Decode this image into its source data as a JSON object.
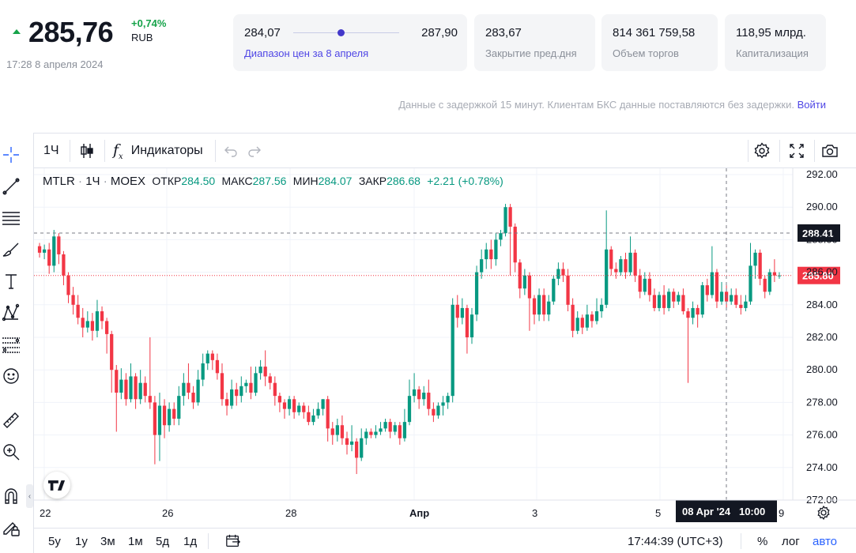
{
  "quote": {
    "price": "285,76",
    "change_pct": "+0,74%",
    "currency": "RUB",
    "timestamp": "17:28 8 апреля 2024",
    "up_color": "#16a34a"
  },
  "cards": {
    "range": {
      "low": "284,07",
      "high": "287,90",
      "label": "Диапазон цен за 8 апреля",
      "position": 0.45
    },
    "prev_close": {
      "value": "283,67",
      "label": "Закрытие пред.дня"
    },
    "volume": {
      "value": "814 361 759,58",
      "label": "Объем торгов"
    },
    "cap": {
      "value": "118,95 млрд.",
      "label": "Капитализация"
    }
  },
  "notice": {
    "text": "Данные с задержкой 15 минут. Клиентам БКС данные поставляются без задержки.",
    "login": "Войти"
  },
  "toolbar": {
    "interval": "1Ч",
    "indicators": "Индикаторы",
    "icons": [
      "candles-icon",
      "fx-icon",
      "undo-icon",
      "redo-icon",
      "settings-icon",
      "fullscreen-icon",
      "camera-icon"
    ]
  },
  "left_tools": [
    "crosshair-icon",
    "trendline-icon",
    "horizontal-lines-icon",
    "brush-icon",
    "text-icon",
    "pattern-icon",
    "fib-icon",
    "emoji-icon",
    "ruler-icon",
    "zoom-in-icon",
    "magnet-icon",
    "lock-pencil-icon"
  ],
  "legend": {
    "symbol": "MTLR",
    "interval": "1Ч",
    "exchange": "MOEX",
    "open_label": "ОТКР",
    "open": "284.50",
    "high_label": "МАКС",
    "high": "287.56",
    "low_label": "МИН",
    "low": "284.07",
    "close_label": "ЗАКР",
    "close": "286.68",
    "change": "+2.21 (+0.78%)"
  },
  "bottom_bar": {
    "ranges": [
      "5у",
      "1у",
      "3м",
      "1м",
      "5д",
      "1д"
    ],
    "clock": "17:44:39 (UTC+3)",
    "pct": "%",
    "log": "лог",
    "auto": "авто"
  },
  "chart_data": {
    "type": "candlestick",
    "symbol": "MTLR",
    "ylim": [
      272,
      292
    ],
    "y_ticks": [
      "292.00",
      "290.00",
      "288.00",
      "286.00",
      "284.00",
      "282.00",
      "280.00",
      "278.00",
      "276.00",
      "274.00",
      "272.00"
    ],
    "x_ticks": [
      "22",
      "26",
      "28",
      "Апр",
      "3",
      "5",
      "9"
    ],
    "crosshair_price": "288.41",
    "last_price": "285.80",
    "crosshair_time": "08 Apr '24   10:00",
    "colors": {
      "up": "#089981",
      "down": "#f23645"
    },
    "candles": [
      [
        287.6,
        287.2,
        287.8,
        286.9
      ],
      [
        287.2,
        287.4,
        287.7,
        286.8
      ],
      [
        287.4,
        286.4,
        287.8,
        285.9
      ],
      [
        286.4,
        288.2,
        288.6,
        286.0
      ],
      [
        288.2,
        287.1,
        288.4,
        286.5
      ],
      [
        287.1,
        285.8,
        287.3,
        285.2
      ],
      [
        285.8,
        284.6,
        286.0,
        284.1
      ],
      [
        284.6,
        284.0,
        285.1,
        283.4
      ],
      [
        284.0,
        283.2,
        284.6,
        282.8
      ],
      [
        283.2,
        282.6,
        283.8,
        282.0
      ],
      [
        282.6,
        283.0,
        283.6,
        282.3
      ],
      [
        283.0,
        282.4,
        283.5,
        281.8
      ],
      [
        282.4,
        283.6,
        284.3,
        282.0
      ],
      [
        283.6,
        283.0,
        283.9,
        282.5
      ],
      [
        283.0,
        282.2,
        283.2,
        281.0
      ],
      [
        282.2,
        280.0,
        282.4,
        278.6
      ],
      [
        280.0,
        278.6,
        280.3,
        276.2
      ],
      [
        278.6,
        279.4,
        280.1,
        278.2
      ],
      [
        279.4,
        278.2,
        279.8,
        277.8
      ],
      [
        278.2,
        279.6,
        280.4,
        278.0
      ],
      [
        279.6,
        278.2,
        279.8,
        277.6
      ],
      [
        278.2,
        279.2,
        280.0,
        277.9
      ],
      [
        279.2,
        278.4,
        279.6,
        278.0
      ],
      [
        278.4,
        278.0,
        282.0,
        277.6
      ],
      [
        278.0,
        276.0,
        278.4,
        274.2
      ],
      [
        276.0,
        277.8,
        278.6,
        274.4
      ],
      [
        277.8,
        276.6,
        278.2,
        275.8
      ],
      [
        276.6,
        277.6,
        278.0,
        276.2
      ],
      [
        277.6,
        277.0,
        278.0,
        276.6
      ],
      [
        277.0,
        278.4,
        279.0,
        276.6
      ],
      [
        278.4,
        279.2,
        279.8,
        277.8
      ],
      [
        279.2,
        278.6,
        280.4,
        278.2
      ],
      [
        278.6,
        278.0,
        279.0,
        277.6
      ],
      [
        278.0,
        279.4,
        280.0,
        277.8
      ],
      [
        279.4,
        280.4,
        281.0,
        279.0
      ],
      [
        280.4,
        281.0,
        281.2,
        280.0
      ],
      [
        281.0,
        280.6,
        281.2,
        280.0
      ],
      [
        280.6,
        279.8,
        281.0,
        279.4
      ],
      [
        279.8,
        278.2,
        280.4,
        277.8
      ],
      [
        278.2,
        277.8,
        278.6,
        277.2
      ],
      [
        277.8,
        278.8,
        279.4,
        277.6
      ],
      [
        278.8,
        278.4,
        279.2,
        277.8
      ],
      [
        278.4,
        279.0,
        279.6,
        278.0
      ],
      [
        279.0,
        279.2,
        279.4,
        278.6
      ],
      [
        279.2,
        278.6,
        280.2,
        278.2
      ],
      [
        278.6,
        279.8,
        280.2,
        278.4
      ],
      [
        279.8,
        280.2,
        280.6,
        279.4
      ],
      [
        280.2,
        279.6,
        281.2,
        279.0
      ],
      [
        279.6,
        279.2,
        279.8,
        278.8
      ],
      [
        279.2,
        278.4,
        279.6,
        277.8
      ],
      [
        278.4,
        278.0,
        278.6,
        277.4
      ],
      [
        278.0,
        277.6,
        278.2,
        277.0
      ],
      [
        277.6,
        278.2,
        278.4,
        277.2
      ],
      [
        278.2,
        277.4,
        278.4,
        277.0
      ],
      [
        277.4,
        277.8,
        278.0,
        277.2
      ],
      [
        277.8,
        277.4,
        278.0,
        277.0
      ],
      [
        277.4,
        276.8,
        277.8,
        276.6
      ],
      [
        276.8,
        277.2,
        277.6,
        276.6
      ],
      [
        277.2,
        277.6,
        278.0,
        277.0
      ],
      [
        277.6,
        278.2,
        278.2,
        277.2
      ],
      [
        278.2,
        276.4,
        278.4,
        275.6
      ],
      [
        276.4,
        276.0,
        276.8,
        275.4
      ],
      [
        276.0,
        276.6,
        277.0,
        275.6
      ],
      [
        276.6,
        275.8,
        277.2,
        275.4
      ],
      [
        275.8,
        275.4,
        276.2,
        274.8
      ],
      [
        275.4,
        275.6,
        276.6,
        275.0
      ],
      [
        275.6,
        274.6,
        275.8,
        273.6
      ],
      [
        274.6,
        275.8,
        276.4,
        274.4
      ],
      [
        275.8,
        276.2,
        276.4,
        275.4
      ],
      [
        276.2,
        276.0,
        276.4,
        275.8
      ],
      [
        276.0,
        276.2,
        276.6,
        275.8
      ],
      [
        276.2,
        276.4,
        276.8,
        276.0
      ],
      [
        276.4,
        276.8,
        277.0,
        276.2
      ],
      [
        276.8,
        276.2,
        277.0,
        275.8
      ],
      [
        276.2,
        276.6,
        276.8,
        276.0
      ],
      [
        276.6,
        275.8,
        276.8,
        275.4
      ],
      [
        275.8,
        276.8,
        277.6,
        275.6
      ],
      [
        276.8,
        278.4,
        279.4,
        276.6
      ],
      [
        278.4,
        278.8,
        279.8,
        278.0
      ],
      [
        278.8,
        278.2,
        279.0,
        277.6
      ],
      [
        278.2,
        278.6,
        279.0,
        277.8
      ],
      [
        278.6,
        277.6,
        279.4,
        277.2
      ],
      [
        277.6,
        277.2,
        278.0,
        276.8
      ],
      [
        277.2,
        277.8,
        278.0,
        277.0
      ],
      [
        277.8,
        278.0,
        278.4,
        277.2
      ],
      [
        278.0,
        278.4,
        278.6,
        277.6
      ],
      [
        278.4,
        284.0,
        284.4,
        278.0
      ],
      [
        284.0,
        283.2,
        284.6,
        282.6
      ],
      [
        283.2,
        283.8,
        284.4,
        282.8
      ],
      [
        283.8,
        282.0,
        284.0,
        281.0
      ],
      [
        282.0,
        283.4,
        283.8,
        281.6
      ],
      [
        283.4,
        286.0,
        286.4,
        283.0
      ],
      [
        286.0,
        286.8,
        287.4,
        285.6
      ],
      [
        286.8,
        287.4,
        287.8,
        286.2
      ],
      [
        287.4,
        286.8,
        288.0,
        286.2
      ],
      [
        286.8,
        288.0,
        288.4,
        286.4
      ],
      [
        288.0,
        288.4,
        288.6,
        287.6
      ],
      [
        288.4,
        290.0,
        290.2,
        288.2
      ],
      [
        290.0,
        288.8,
        290.2,
        285.8
      ],
      [
        288.8,
        286.6,
        289.0,
        286.0
      ],
      [
        286.6,
        285.0,
        286.8,
        284.4
      ],
      [
        285.0,
        285.8,
        286.2,
        284.6
      ],
      [
        285.8,
        284.4,
        286.0,
        282.4
      ],
      [
        284.4,
        283.4,
        284.6,
        282.8
      ],
      [
        283.4,
        284.6,
        285.0,
        283.0
      ],
      [
        284.6,
        283.4,
        285.0,
        283.0
      ],
      [
        283.4,
        284.2,
        284.6,
        283.0
      ],
      [
        284.2,
        285.6,
        285.8,
        284.0
      ],
      [
        285.6,
        286.2,
        286.6,
        285.2
      ],
      [
        286.2,
        285.8,
        286.6,
        285.4
      ],
      [
        285.8,
        284.0,
        286.2,
        283.6
      ],
      [
        284.0,
        282.4,
        284.4,
        282.0
      ],
      [
        282.4,
        283.2,
        283.6,
        282.2
      ],
      [
        283.2,
        282.6,
        283.4,
        282.2
      ],
      [
        282.6,
        283.4,
        284.0,
        282.4
      ],
      [
        283.4,
        283.0,
        283.6,
        282.6
      ],
      [
        283.0,
        283.6,
        284.4,
        282.8
      ],
      [
        283.6,
        284.0,
        284.4,
        283.2
      ],
      [
        284.0,
        287.4,
        289.8,
        283.8
      ],
      [
        287.4,
        286.2,
        287.6,
        285.8
      ],
      [
        286.2,
        286.0,
        286.6,
        285.6
      ],
      [
        286.0,
        286.8,
        287.0,
        285.8
      ],
      [
        286.8,
        286.0,
        287.2,
        285.6
      ],
      [
        286.0,
        287.2,
        288.2,
        285.8
      ],
      [
        287.2,
        285.8,
        287.4,
        285.4
      ],
      [
        285.8,
        284.8,
        286.2,
        284.4
      ],
      [
        284.8,
        285.6,
        286.0,
        284.6
      ],
      [
        285.6,
        284.6,
        286.0,
        284.2
      ],
      [
        284.6,
        283.8,
        285.0,
        283.6
      ],
      [
        283.8,
        284.6,
        284.8,
        283.6
      ],
      [
        284.6,
        283.8,
        285.2,
        283.4
      ],
      [
        283.8,
        284.8,
        285.0,
        283.6
      ],
      [
        284.8,
        284.2,
        285.0,
        283.8
      ],
      [
        284.2,
        284.6,
        284.8,
        284.0
      ],
      [
        284.6,
        283.6,
        285.0,
        283.4
      ],
      [
        283.6,
        283.2,
        283.8,
        279.2
      ],
      [
        283.2,
        283.8,
        284.2,
        282.8
      ],
      [
        283.8,
        283.4,
        284.0,
        282.6
      ],
      [
        283.4,
        285.2,
        285.4,
        283.2
      ],
      [
        285.2,
        284.6,
        285.6,
        284.2
      ],
      [
        284.6,
        286.0,
        287.6,
        284.4
      ],
      [
        286.0,
        284.2,
        286.2,
        283.8
      ],
      [
        284.2,
        284.8,
        285.4,
        284.0
      ],
      [
        284.8,
        284.2,
        285.2,
        283.8
      ],
      [
        284.2,
        284.6,
        285.0,
        284.0
      ],
      [
        284.6,
        284.0,
        285.0,
        283.8
      ],
      [
        284.0,
        283.8,
        284.6,
        283.4
      ],
      [
        283.8,
        284.2,
        284.6,
        283.6
      ],
      [
        284.2,
        286.4,
        287.8,
        284.0
      ],
      [
        286.4,
        287.2,
        287.4,
        285.6
      ],
      [
        287.2,
        285.6,
        287.4,
        285.2
      ],
      [
        285.6,
        284.8,
        285.8,
        284.4
      ],
      [
        284.8,
        286.0,
        286.2,
        284.6
      ],
      [
        286.0,
        285.8,
        286.8,
        285.4
      ],
      [
        285.8,
        285.8,
        286.0,
        285.6
      ]
    ]
  }
}
